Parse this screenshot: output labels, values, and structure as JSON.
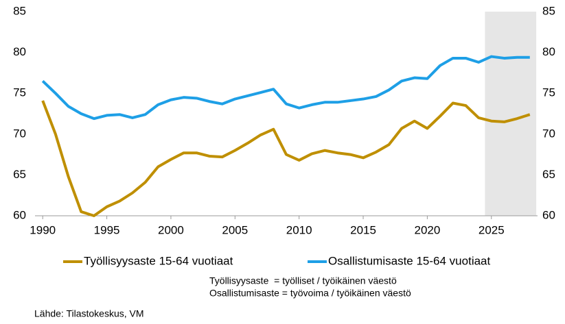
{
  "chart_data": {
    "type": "line",
    "x": [
      1990,
      1991,
      1992,
      1993,
      1994,
      1995,
      1996,
      1997,
      1998,
      1999,
      2000,
      2001,
      2002,
      2003,
      2004,
      2005,
      2006,
      2007,
      2008,
      2009,
      2010,
      2011,
      2012,
      2013,
      2014,
      2015,
      2016,
      2017,
      2018,
      2019,
      2020,
      2021,
      2022,
      2023,
      2024,
      2025,
      2026,
      2027,
      2028
    ],
    "series": [
      {
        "name": "Työllisyysaste 15-64 vuotiaat",
        "color": "#bf8f00",
        "values": [
          74.1,
          70.0,
          64.8,
          60.5,
          60.0,
          61.1,
          61.8,
          62.8,
          64.1,
          66.0,
          66.9,
          67.7,
          67.7,
          67.3,
          67.2,
          68.0,
          68.9,
          69.9,
          70.6,
          67.5,
          66.8,
          67.6,
          68.0,
          67.7,
          67.5,
          67.1,
          67.8,
          68.7,
          70.7,
          71.6,
          70.7,
          72.2,
          73.8,
          73.5,
          72.0,
          71.6,
          71.5,
          71.9,
          72.4
        ]
      },
      {
        "name": "Osallistumisaste 15-64 vuotiaat",
        "color": "#1e9fe6",
        "values": [
          76.5,
          75.0,
          73.4,
          72.5,
          71.9,
          72.3,
          72.4,
          72.0,
          72.4,
          73.6,
          74.2,
          74.5,
          74.4,
          74.0,
          73.7,
          74.3,
          74.7,
          75.1,
          75.5,
          73.7,
          73.2,
          73.6,
          73.9,
          73.9,
          74.1,
          74.3,
          74.6,
          75.4,
          76.5,
          76.9,
          76.8,
          78.4,
          79.3,
          79.3,
          78.8,
          79.5,
          79.3,
          79.4,
          79.4
        ]
      }
    ],
    "xlim": [
      1989.4,
      2028.6
    ],
    "xticks": [
      1990,
      1995,
      2000,
      2005,
      2010,
      2015,
      2020,
      2025
    ],
    "ylim": [
      60,
      85
    ],
    "yticks": [
      60,
      65,
      70,
      75,
      80,
      85
    ],
    "y2lim": [
      60,
      85
    ],
    "y2ticks": [
      60,
      65,
      70,
      75,
      80,
      85
    ],
    "shaded_x": [
      2024.5,
      2028.5
    ],
    "shade_color": "#e6e6e6",
    "notes": [
      "Työllisyysaste  = työlliset / työikäinen väestö",
      "Osallistumisaste = työvoima / työikäinen väestö"
    ],
    "source": "Lähde: Tilastokeskus, VM"
  }
}
